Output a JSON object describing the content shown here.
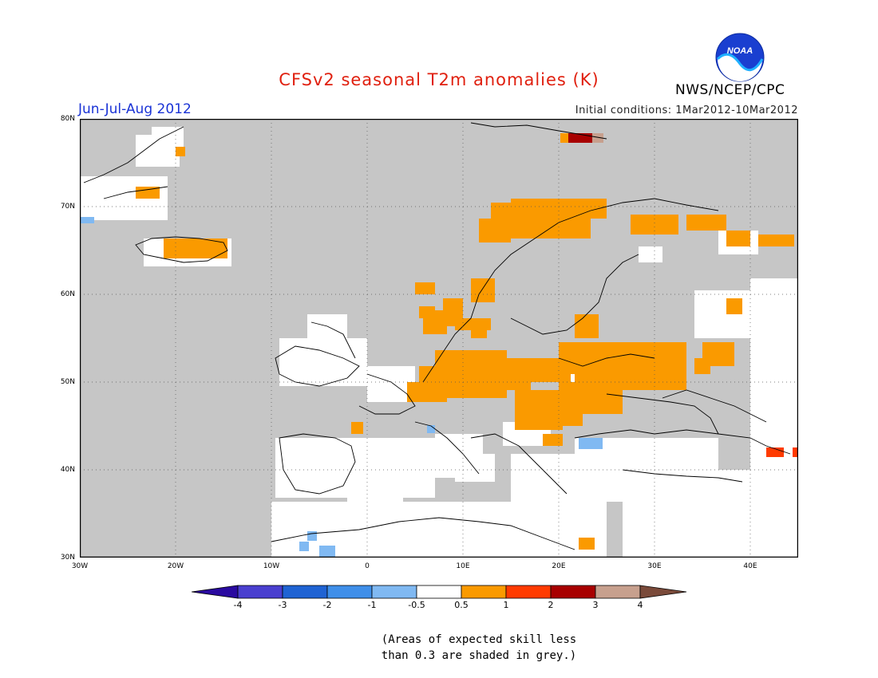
{
  "header": {
    "title": "CFSv2 seasonal T2m anomalies (K)",
    "period": "Jun-Jul-Aug 2012",
    "initial_conditions": "Initial conditions: 1Mar2012-10Mar2012",
    "agency": "NWS/NCEP/CPC",
    "logo_text": "NOAA"
  },
  "map": {
    "region": "Europe",
    "lon_range": [
      -30,
      45
    ],
    "lat_range": [
      30,
      80
    ],
    "lat_labels": [
      "80N",
      "70N",
      "60N",
      "50N",
      "40N",
      "30N"
    ],
    "lon_labels": [
      "30W",
      "20W",
      "10W",
      "0",
      "10E",
      "20E",
      "30E",
      "40E"
    ]
  },
  "legend": {
    "labels": [
      "-4",
      "-3",
      "-2",
      "-1",
      "-0.5",
      "0.5",
      "1",
      "2",
      "3",
      "4"
    ],
    "colors": {
      "lt_minus4": "#2a0aa0",
      "m4_m3": "#4a3fcf",
      "m3_m2": "#1f63d3",
      "m2_m1": "#3f8fe9",
      "m1_m05": "#80b9f2",
      "neutral": "#ffffff",
      "p05_p1": "#fa9a00",
      "p1_p2": "#ff3b00",
      "p2_p3": "#a80000",
      "p3_p4": "#c7a08e",
      "gt_4": "#7a4a3a",
      "low_skill_grey": "#c6c6c6"
    }
  },
  "note": {
    "line1": "(Areas of expected skill less",
    "line2": "than 0.3 are shaded in grey.)"
  }
}
